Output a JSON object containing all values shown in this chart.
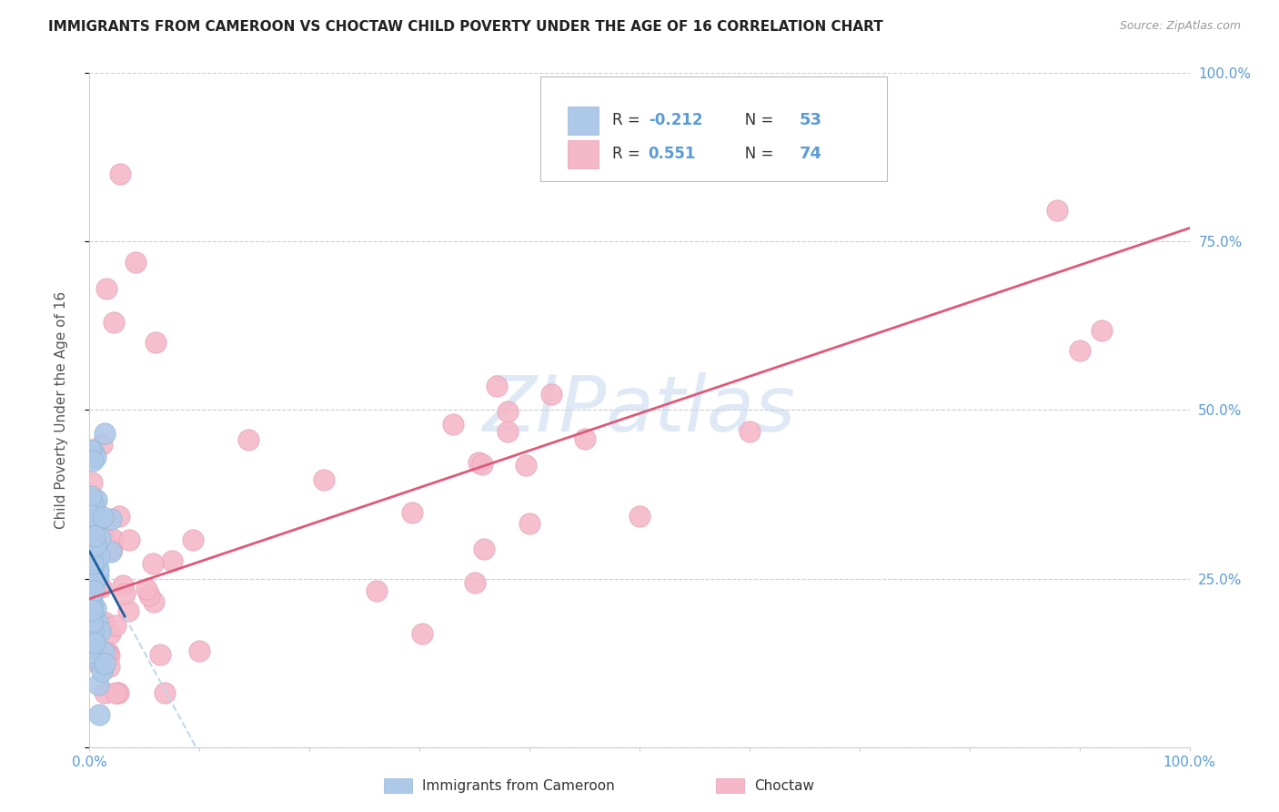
{
  "title": "IMMIGRANTS FROM CAMEROON VS CHOCTAW CHILD POVERTY UNDER THE AGE OF 16 CORRELATION CHART",
  "source": "Source: ZipAtlas.com",
  "ylabel": "Child Poverty Under the Age of 16",
  "xlabel": "",
  "watermark": "ZIPatlas",
  "xlim": [
    0.0,
    1.0
  ],
  "ylim": [
    0.0,
    1.0
  ],
  "legend_label1": "Immigrants from Cameroon",
  "legend_label2": "Choctaw",
  "R1": "-0.212",
  "N1": "53",
  "R2": "0.551",
  "N2": "74",
  "color1": "#aec9e8",
  "color2": "#f4b8c8",
  "trendline1_color": "#2060a0",
  "trendline2_color": "#e05878",
  "trendline1_dash_color": "#c0d8f0",
  "background_color": "#ffffff",
  "grid_color": "#cccccc",
  "title_color": "#222222",
  "source_color": "#999999",
  "axis_label_color": "#5b9bd5",
  "text_color": "#333333"
}
